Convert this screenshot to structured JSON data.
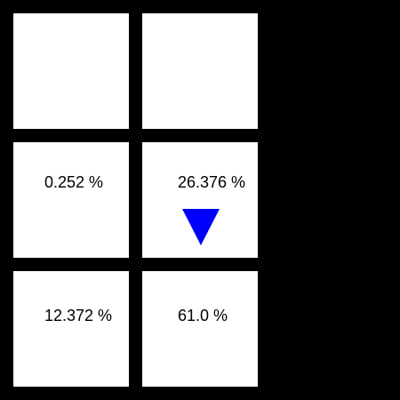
{
  "cells": {
    "r0c0": {
      "label": ""
    },
    "r0c1": {
      "label": ""
    },
    "r1c0": {
      "label": "0.252 %"
    },
    "r1c1": {
      "label": "26.376 %",
      "marker": {
        "icon": "triangle-down-icon",
        "color": "#0000ff"
      }
    },
    "r2c0": {
      "label": "12.372 %"
    },
    "r2c1": {
      "label": "61.0 %"
    }
  },
  "colors": {
    "background": "#000000",
    "cell": "#ffffff",
    "text": "#000000",
    "marker": "#0000ff"
  }
}
